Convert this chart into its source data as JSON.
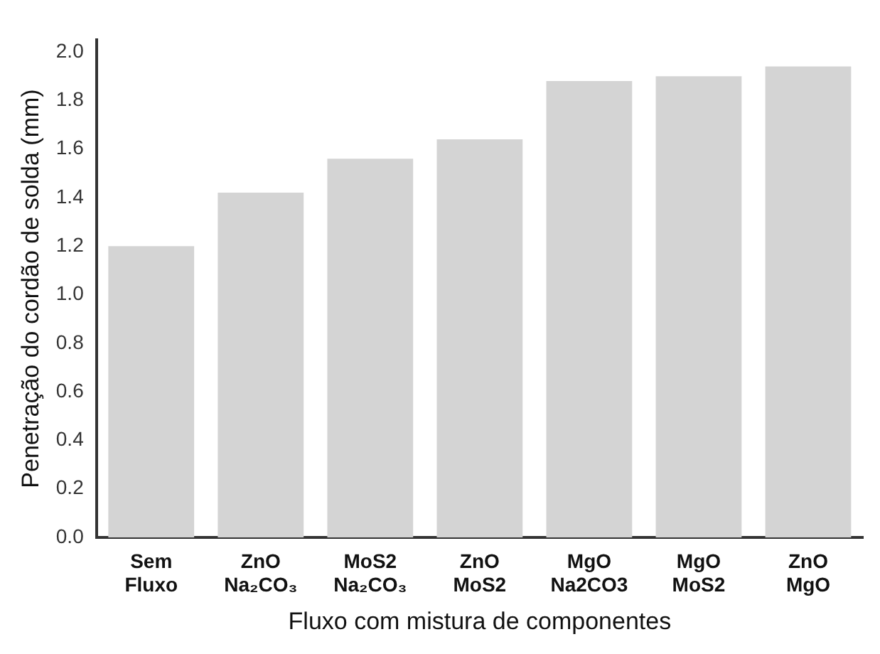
{
  "chart_data": {
    "type": "bar",
    "xlabel": "Fluxo com mistura de componentes",
    "ylabel": "Penetração do cordão de solda (mm)",
    "categories": [
      "Sem\nFluxo",
      "ZnO\nNa₂CO₃",
      "MoS2\nNa₂CO₃",
      "ZnO\nMoS2",
      "MgO\nNa2CO3",
      "MgO\nMoS2",
      "ZnO\nMgO"
    ],
    "values": [
      1.2,
      1.42,
      1.56,
      1.64,
      1.88,
      1.9,
      1.94
    ],
    "color": "#d4d4d4",
    "ylim": [
      0,
      2.05
    ],
    "yticks": [
      {
        "value": 0,
        "label": "0.0"
      },
      {
        "value": 0.2,
        "label": "0.2"
      },
      {
        "value": 0.4,
        "label": "0.4"
      },
      {
        "value": 0.6,
        "label": "0.6"
      },
      {
        "value": 0.8,
        "label": "0.8"
      },
      {
        "value": 1,
        "label": "1.0"
      },
      {
        "value": 1.2,
        "label": "1.2"
      },
      {
        "value": 1.4,
        "label": "1.4"
      },
      {
        "value": 1.6,
        "label": "1.6"
      },
      {
        "value": 1.8,
        "label": "1.8"
      },
      {
        "value": 2,
        "label": "2.0"
      }
    ],
    "grid": false,
    "legend": false
  }
}
